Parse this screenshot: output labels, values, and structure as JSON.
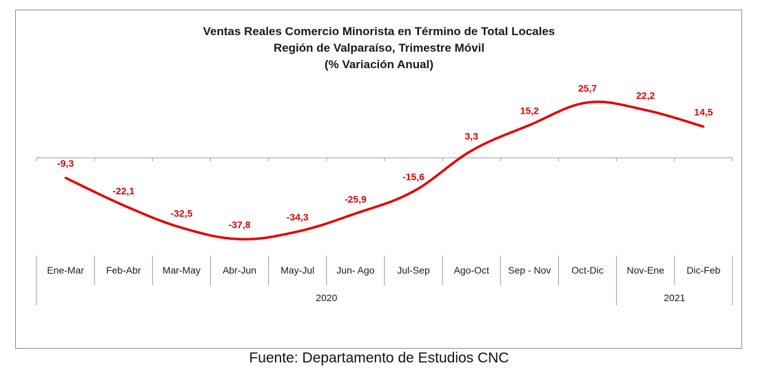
{
  "chart_data": {
    "type": "line",
    "title": [
      "Ventas Reales Comercio Minorista  en Término de Total Locales",
      "Región de Valparaíso, Trimestre Móvil",
      "(% Variación Anual)"
    ],
    "categories": [
      "Ene-Mar",
      "Feb-Abr",
      "Mar-May",
      "Abr-Jun",
      "May-Jul",
      "Jun- Ago",
      "Jul-Sep",
      "Ago-Oct",
      "Sep - Nov",
      "Oct-Dic",
      "Nov-Ene",
      "Dic-Feb"
    ],
    "values": [
      -9.3,
      -22.1,
      -32.5,
      -37.8,
      -34.3,
      -25.9,
      -15.6,
      3.3,
      15.2,
      25.7,
      22.2,
      14.5
    ],
    "labels": [
      "-9,3",
      "-22,1",
      "-32,5",
      "-37,8",
      "-34,3",
      "-25,9",
      "-15,6",
      "3,3",
      "15,2",
      "25,7",
      "22,2",
      "14,5"
    ],
    "groups": [
      {
        "label": "2020",
        "span": 10
      },
      {
        "label": "2021",
        "span": 2
      }
    ],
    "ylim": [
      -40,
      30
    ],
    "line_color": "#e60000",
    "grid": false,
    "legend": "none"
  },
  "source": "Fuente: Departamento de Estudios CNC"
}
